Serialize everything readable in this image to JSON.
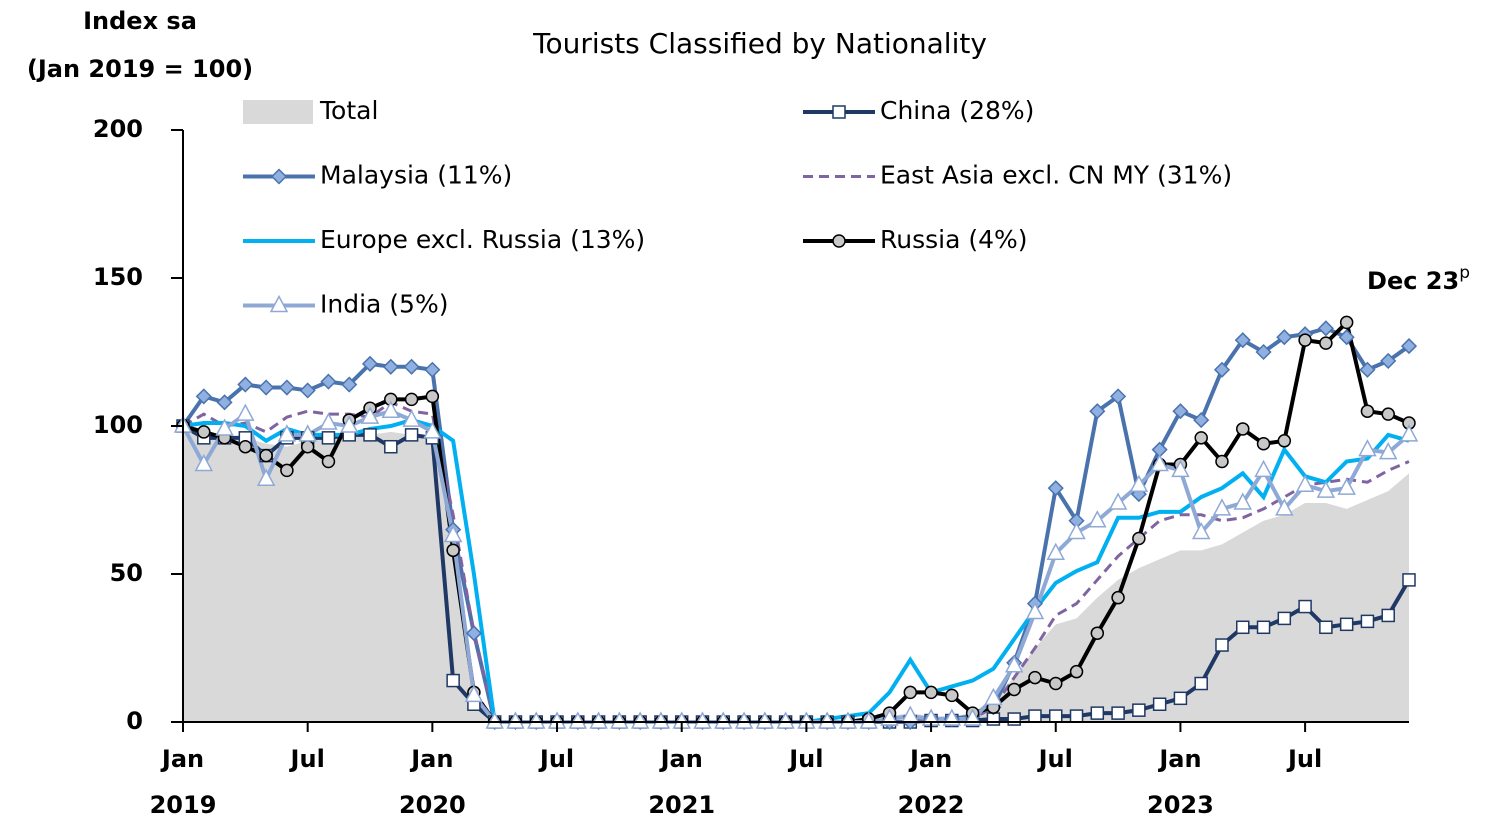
{
  "chart_data": {
    "type": "line",
    "title": "Tourists Classified by Nationality",
    "ylabel": [
      "Index sa",
      "(Jan 2019 = 100)"
    ],
    "annotation": {
      "text": "Dec 23",
      "sup": "p"
    },
    "categories": [
      "Jan",
      null,
      null,
      null,
      null,
      null,
      "Jul",
      null,
      null,
      null,
      null,
      null,
      "Jan",
      null,
      null,
      null,
      null,
      null,
      "Jul",
      null,
      null,
      null,
      null,
      null,
      "Jan",
      null,
      null,
      null,
      null,
      null,
      "Jul",
      null,
      null,
      null,
      null,
      null,
      "Jan",
      null,
      null,
      null,
      null,
      null,
      "Jul",
      null,
      null,
      null,
      null,
      null,
      "Jan",
      null,
      null,
      null,
      null,
      null,
      "Jul",
      null,
      null,
      null,
      null,
      null
    ],
    "years": [
      "2019",
      "2020",
      "2021",
      "2022",
      "2023"
    ],
    "ylim": [
      0,
      200
    ],
    "yticks": [
      0,
      50,
      100,
      150,
      200
    ],
    "series": [
      {
        "name": "Total",
        "color": "#d9d9d9",
        "area": true,
        "values": [
          100,
          96,
          95,
          96,
          94,
          93,
          95,
          96,
          96,
          97,
          98,
          97,
          97,
          60,
          5,
          0,
          0,
          0,
          0,
          0,
          0,
          0,
          0,
          0,
          0,
          0,
          0,
          0,
          0,
          0,
          0,
          0,
          0,
          0,
          2,
          3,
          2,
          2,
          3,
          8,
          15,
          25,
          33,
          35,
          42,
          48,
          52,
          55,
          58,
          58,
          60,
          64,
          68,
          70,
          74,
          74,
          72,
          75,
          78,
          84
        ]
      },
      {
        "name": "China (28%)",
        "color": "#1f3864",
        "marker": "square",
        "values": [
          100,
          96,
          96,
          96,
          90,
          96,
          96,
          96,
          97,
          97,
          93,
          97,
          96,
          14,
          6,
          0,
          0,
          0,
          0,
          0,
          0,
          0,
          0,
          0,
          0,
          0,
          0,
          0,
          0,
          0,
          0,
          0,
          0,
          0,
          0,
          0,
          0.5,
          0.5,
          0.5,
          1,
          1,
          2,
          2,
          2,
          3,
          3,
          4,
          6,
          8,
          13,
          26,
          32,
          32,
          35,
          39,
          32,
          33,
          34,
          36,
          48
        ]
      },
      {
        "name": "Malaysia (11%)",
        "color": "#4a73ad",
        "marker": "diamond",
        "values": [
          100,
          110,
          108,
          114,
          113,
          113,
          112,
          115,
          114,
          121,
          120,
          120,
          119,
          65,
          30,
          0,
          0,
          0,
          0,
          0,
          0,
          0,
          0,
          0,
          0,
          0,
          0,
          0,
          0,
          0,
          0,
          0,
          0,
          0,
          0,
          0,
          1,
          1,
          2,
          5,
          20,
          40,
          79,
          68,
          105,
          110,
          77,
          92,
          105,
          102,
          119,
          129,
          125,
          130,
          131,
          133,
          130,
          119,
          122,
          127
        ]
      },
      {
        "name": "East Asia excl. CN MY (31%)",
        "color": "#8064a2",
        "dash": true,
        "values": [
          100,
          104,
          100,
          101,
          98,
          103,
          105,
          104,
          104,
          103,
          108,
          105,
          104,
          70,
          30,
          0,
          0,
          0,
          0,
          0,
          0,
          0,
          0,
          0,
          0,
          0,
          0,
          0,
          0,
          0,
          0,
          0,
          0,
          0,
          0,
          0,
          1,
          1,
          1,
          5,
          15,
          25,
          36,
          40,
          48,
          56,
          62,
          68,
          70,
          70,
          68,
          69,
          72,
          76,
          80,
          81,
          82,
          81,
          85,
          88
        ]
      },
      {
        "name": "Europe excl. Russia (13%)",
        "color": "#00b0f0",
        "values": [
          100,
          101,
          101,
          100,
          95,
          99,
          97,
          97,
          97,
          99,
          100,
          102,
          100,
          95,
          50,
          0,
          0,
          0,
          0,
          0,
          0,
          0,
          0,
          0,
          0,
          0,
          0,
          0,
          0,
          0,
          0,
          1,
          2,
          3,
          10,
          21,
          10,
          12,
          14,
          18,
          28,
          38,
          47,
          51,
          54,
          69,
          69,
          71,
          71,
          76,
          79,
          84,
          76,
          92,
          83,
          81,
          88,
          89,
          97,
          95
        ]
      },
      {
        "name": "Russia (4%)",
        "color": "#000000",
        "marker": "circle",
        "values": [
          100,
          98,
          96,
          93,
          90,
          85,
          93,
          88,
          102,
          106,
          109,
          109,
          110,
          58,
          10,
          0,
          0,
          0,
          0,
          0,
          0,
          0,
          0,
          0,
          0,
          0,
          0,
          0,
          0,
          0,
          0,
          0,
          0,
          1,
          3,
          10,
          10,
          9,
          3,
          5,
          11,
          15,
          13,
          17,
          30,
          42,
          62,
          87,
          87,
          96,
          88,
          99,
          94,
          95,
          129,
          128,
          135,
          105,
          104,
          101
        ]
      },
      {
        "name": "India (5%)",
        "color": "#8fa9d6",
        "marker": "triangle",
        "values": [
          100,
          87,
          99,
          104,
          82,
          97,
          97,
          101,
          100,
          103,
          105,
          102,
          98,
          63,
          9,
          0,
          0,
          0,
          0,
          0,
          0,
          0,
          0,
          0,
          0,
          0,
          0,
          0,
          0,
          0,
          0,
          0,
          0,
          0,
          1,
          2,
          1,
          1,
          1,
          8,
          19,
          37,
          57,
          64,
          68,
          74,
          80,
          87,
          85,
          64,
          72,
          74,
          85,
          72,
          80,
          78,
          79,
          92,
          91,
          97
        ]
      }
    ]
  }
}
